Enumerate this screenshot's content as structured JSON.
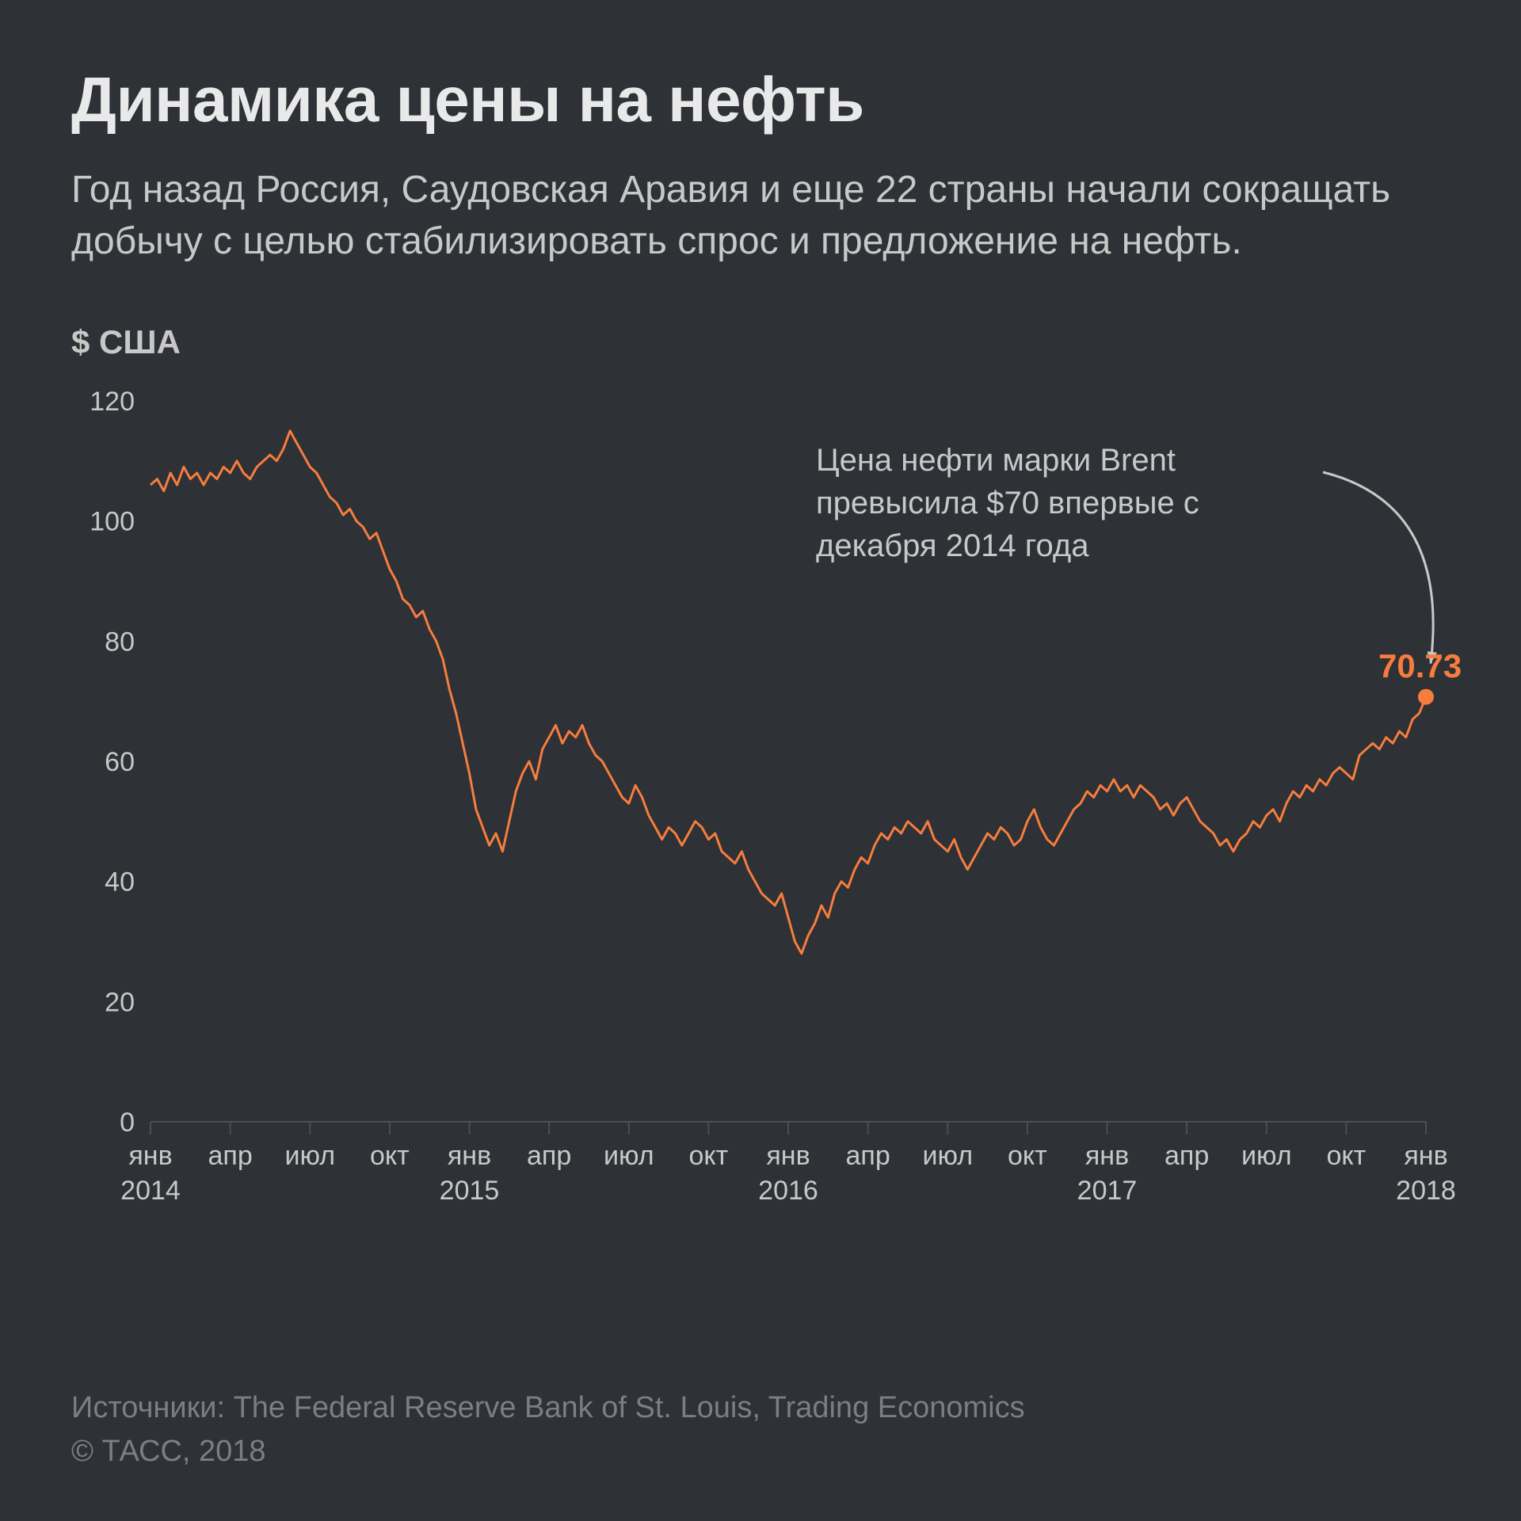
{
  "title": "Динамика цены на нефть",
  "subtitle": "Год назад Россия, Саудовская Аравия и еще 22 страны начали сокращать добычу с целью стабилизировать спрос и предложение на нефть.",
  "annotation_text": "Цена нефти марки Brent превысила $70 впервые с декабря 2014 года",
  "endpoint_value_label": "70.73",
  "footer_sources": "Источники: The Federal Reserve Bank of St. Louis, Trading Economics",
  "footer_copyright": "© ТАСС, 2018",
  "chart": {
    "type": "line",
    "background_color": "#2e3135",
    "grid_color": "#4b4e52",
    "series_color": "#f67d3e",
    "annotation_text_color": "#c8c8c8",
    "value_label_color": "#f67d3e",
    "line_width": 3,
    "ylabel": "$ США",
    "ylim": [
      0,
      120
    ],
    "ytick_step": 20,
    "yticks": [
      0,
      20,
      40,
      60,
      80,
      100,
      120
    ],
    "x_domain_months": [
      0,
      48
    ],
    "x_month_labels": [
      "янв",
      "апр",
      "июл",
      "окт"
    ],
    "x_years": [
      {
        "month": 0,
        "label": "2014"
      },
      {
        "month": 12,
        "label": "2015"
      },
      {
        "month": 24,
        "label": "2016"
      },
      {
        "month": 36,
        "label": "2017"
      },
      {
        "month": 48,
        "label": "2018"
      }
    ],
    "x_ticks": [
      {
        "month": 0,
        "label": "янв",
        "year": "2014"
      },
      {
        "month": 3,
        "label": "апр"
      },
      {
        "month": 6,
        "label": "июл"
      },
      {
        "month": 9,
        "label": "окт"
      },
      {
        "month": 12,
        "label": "янв",
        "year": "2015"
      },
      {
        "month": 15,
        "label": "апр"
      },
      {
        "month": 18,
        "label": "июл"
      },
      {
        "month": 21,
        "label": "окт"
      },
      {
        "month": 24,
        "label": "янв",
        "year": "2016"
      },
      {
        "month": 27,
        "label": "апр"
      },
      {
        "month": 30,
        "label": "июл"
      },
      {
        "month": 33,
        "label": "окт"
      },
      {
        "month": 36,
        "label": "янв",
        "year": "2017"
      },
      {
        "month": 39,
        "label": "апр"
      },
      {
        "month": 42,
        "label": "июл"
      },
      {
        "month": 45,
        "label": "окт"
      },
      {
        "month": 48,
        "label": "янв",
        "year": "2018"
      }
    ],
    "endpoint": {
      "month": 48,
      "value": 70.73
    },
    "series": [
      [
        0,
        106
      ],
      [
        0.25,
        107
      ],
      [
        0.5,
        105
      ],
      [
        0.75,
        108
      ],
      [
        1,
        106
      ],
      [
        1.25,
        109
      ],
      [
        1.5,
        107
      ],
      [
        1.75,
        108
      ],
      [
        2,
        106
      ],
      [
        2.25,
        108
      ],
      [
        2.5,
        107
      ],
      [
        2.75,
        109
      ],
      [
        3,
        108
      ],
      [
        3.25,
        110
      ],
      [
        3.5,
        108
      ],
      [
        3.75,
        107
      ],
      [
        4,
        109
      ],
      [
        4.25,
        110
      ],
      [
        4.5,
        111
      ],
      [
        4.75,
        110
      ],
      [
        5,
        112
      ],
      [
        5.25,
        115
      ],
      [
        5.5,
        113
      ],
      [
        5.75,
        111
      ],
      [
        6,
        109
      ],
      [
        6.25,
        108
      ],
      [
        6.5,
        106
      ],
      [
        6.75,
        104
      ],
      [
        7,
        103
      ],
      [
        7.25,
        101
      ],
      [
        7.5,
        102
      ],
      [
        7.75,
        100
      ],
      [
        8,
        99
      ],
      [
        8.25,
        97
      ],
      [
        8.5,
        98
      ],
      [
        8.75,
        95
      ],
      [
        9,
        92
      ],
      [
        9.25,
        90
      ],
      [
        9.5,
        87
      ],
      [
        9.75,
        86
      ],
      [
        10,
        84
      ],
      [
        10.25,
        85
      ],
      [
        10.5,
        82
      ],
      [
        10.75,
        80
      ],
      [
        11,
        77
      ],
      [
        11.25,
        72
      ],
      [
        11.5,
        68
      ],
      [
        11.75,
        63
      ],
      [
        12,
        58
      ],
      [
        12.25,
        52
      ],
      [
        12.5,
        49
      ],
      [
        12.75,
        46
      ],
      [
        13,
        48
      ],
      [
        13.25,
        45
      ],
      [
        13.5,
        50
      ],
      [
        13.75,
        55
      ],
      [
        14,
        58
      ],
      [
        14.25,
        60
      ],
      [
        14.5,
        57
      ],
      [
        14.75,
        62
      ],
      [
        15,
        64
      ],
      [
        15.25,
        66
      ],
      [
        15.5,
        63
      ],
      [
        15.75,
        65
      ],
      [
        16,
        64
      ],
      [
        16.25,
        66
      ],
      [
        16.5,
        63
      ],
      [
        16.75,
        61
      ],
      [
        17,
        60
      ],
      [
        17.25,
        58
      ],
      [
        17.5,
        56
      ],
      [
        17.75,
        54
      ],
      [
        18,
        53
      ],
      [
        18.25,
        56
      ],
      [
        18.5,
        54
      ],
      [
        18.75,
        51
      ],
      [
        19,
        49
      ],
      [
        19.25,
        47
      ],
      [
        19.5,
        49
      ],
      [
        19.75,
        48
      ],
      [
        20,
        46
      ],
      [
        20.25,
        48
      ],
      [
        20.5,
        50
      ],
      [
        20.75,
        49
      ],
      [
        21,
        47
      ],
      [
        21.25,
        48
      ],
      [
        21.5,
        45
      ],
      [
        21.75,
        44
      ],
      [
        22,
        43
      ],
      [
        22.25,
        45
      ],
      [
        22.5,
        42
      ],
      [
        22.75,
        40
      ],
      [
        23,
        38
      ],
      [
        23.25,
        37
      ],
      [
        23.5,
        36
      ],
      [
        23.75,
        38
      ],
      [
        24,
        34
      ],
      [
        24.25,
        30
      ],
      [
        24.5,
        28
      ],
      [
        24.75,
        31
      ],
      [
        25,
        33
      ],
      [
        25.25,
        36
      ],
      [
        25.5,
        34
      ],
      [
        25.75,
        38
      ],
      [
        26,
        40
      ],
      [
        26.25,
        39
      ],
      [
        26.5,
        42
      ],
      [
        26.75,
        44
      ],
      [
        27,
        43
      ],
      [
        27.25,
        46
      ],
      [
        27.5,
        48
      ],
      [
        27.75,
        47
      ],
      [
        28,
        49
      ],
      [
        28.25,
        48
      ],
      [
        28.5,
        50
      ],
      [
        28.75,
        49
      ],
      [
        29,
        48
      ],
      [
        29.25,
        50
      ],
      [
        29.5,
        47
      ],
      [
        29.75,
        46
      ],
      [
        30,
        45
      ],
      [
        30.25,
        47
      ],
      [
        30.5,
        44
      ],
      [
        30.75,
        42
      ],
      [
        31,
        44
      ],
      [
        31.25,
        46
      ],
      [
        31.5,
        48
      ],
      [
        31.75,
        47
      ],
      [
        32,
        49
      ],
      [
        32.25,
        48
      ],
      [
        32.5,
        46
      ],
      [
        32.75,
        47
      ],
      [
        33,
        50
      ],
      [
        33.25,
        52
      ],
      [
        33.5,
        49
      ],
      [
        33.75,
        47
      ],
      [
        34,
        46
      ],
      [
        34.25,
        48
      ],
      [
        34.5,
        50
      ],
      [
        34.75,
        52
      ],
      [
        35,
        53
      ],
      [
        35.25,
        55
      ],
      [
        35.5,
        54
      ],
      [
        35.75,
        56
      ],
      [
        36,
        55
      ],
      [
        36.25,
        57
      ],
      [
        36.5,
        55
      ],
      [
        36.75,
        56
      ],
      [
        37,
        54
      ],
      [
        37.25,
        56
      ],
      [
        37.5,
        55
      ],
      [
        37.75,
        54
      ],
      [
        38,
        52
      ],
      [
        38.25,
        53
      ],
      [
        38.5,
        51
      ],
      [
        38.75,
        53
      ],
      [
        39,
        54
      ],
      [
        39.25,
        52
      ],
      [
        39.5,
        50
      ],
      [
        39.75,
        49
      ],
      [
        40,
        48
      ],
      [
        40.25,
        46
      ],
      [
        40.5,
        47
      ],
      [
        40.75,
        45
      ],
      [
        41,
        47
      ],
      [
        41.25,
        48
      ],
      [
        41.5,
        50
      ],
      [
        41.75,
        49
      ],
      [
        42,
        51
      ],
      [
        42.25,
        52
      ],
      [
        42.5,
        50
      ],
      [
        42.75,
        53
      ],
      [
        43,
        55
      ],
      [
        43.25,
        54
      ],
      [
        43.5,
        56
      ],
      [
        43.75,
        55
      ],
      [
        44,
        57
      ],
      [
        44.25,
        56
      ],
      [
        44.5,
        58
      ],
      [
        44.75,
        59
      ],
      [
        45,
        58
      ],
      [
        45.25,
        57
      ],
      [
        45.5,
        61
      ],
      [
        45.75,
        62
      ],
      [
        46,
        63
      ],
      [
        46.25,
        62
      ],
      [
        46.5,
        64
      ],
      [
        46.75,
        63
      ],
      [
        47,
        65
      ],
      [
        47.25,
        64
      ],
      [
        47.5,
        67
      ],
      [
        47.75,
        68
      ],
      [
        48,
        70.73
      ]
    ]
  }
}
